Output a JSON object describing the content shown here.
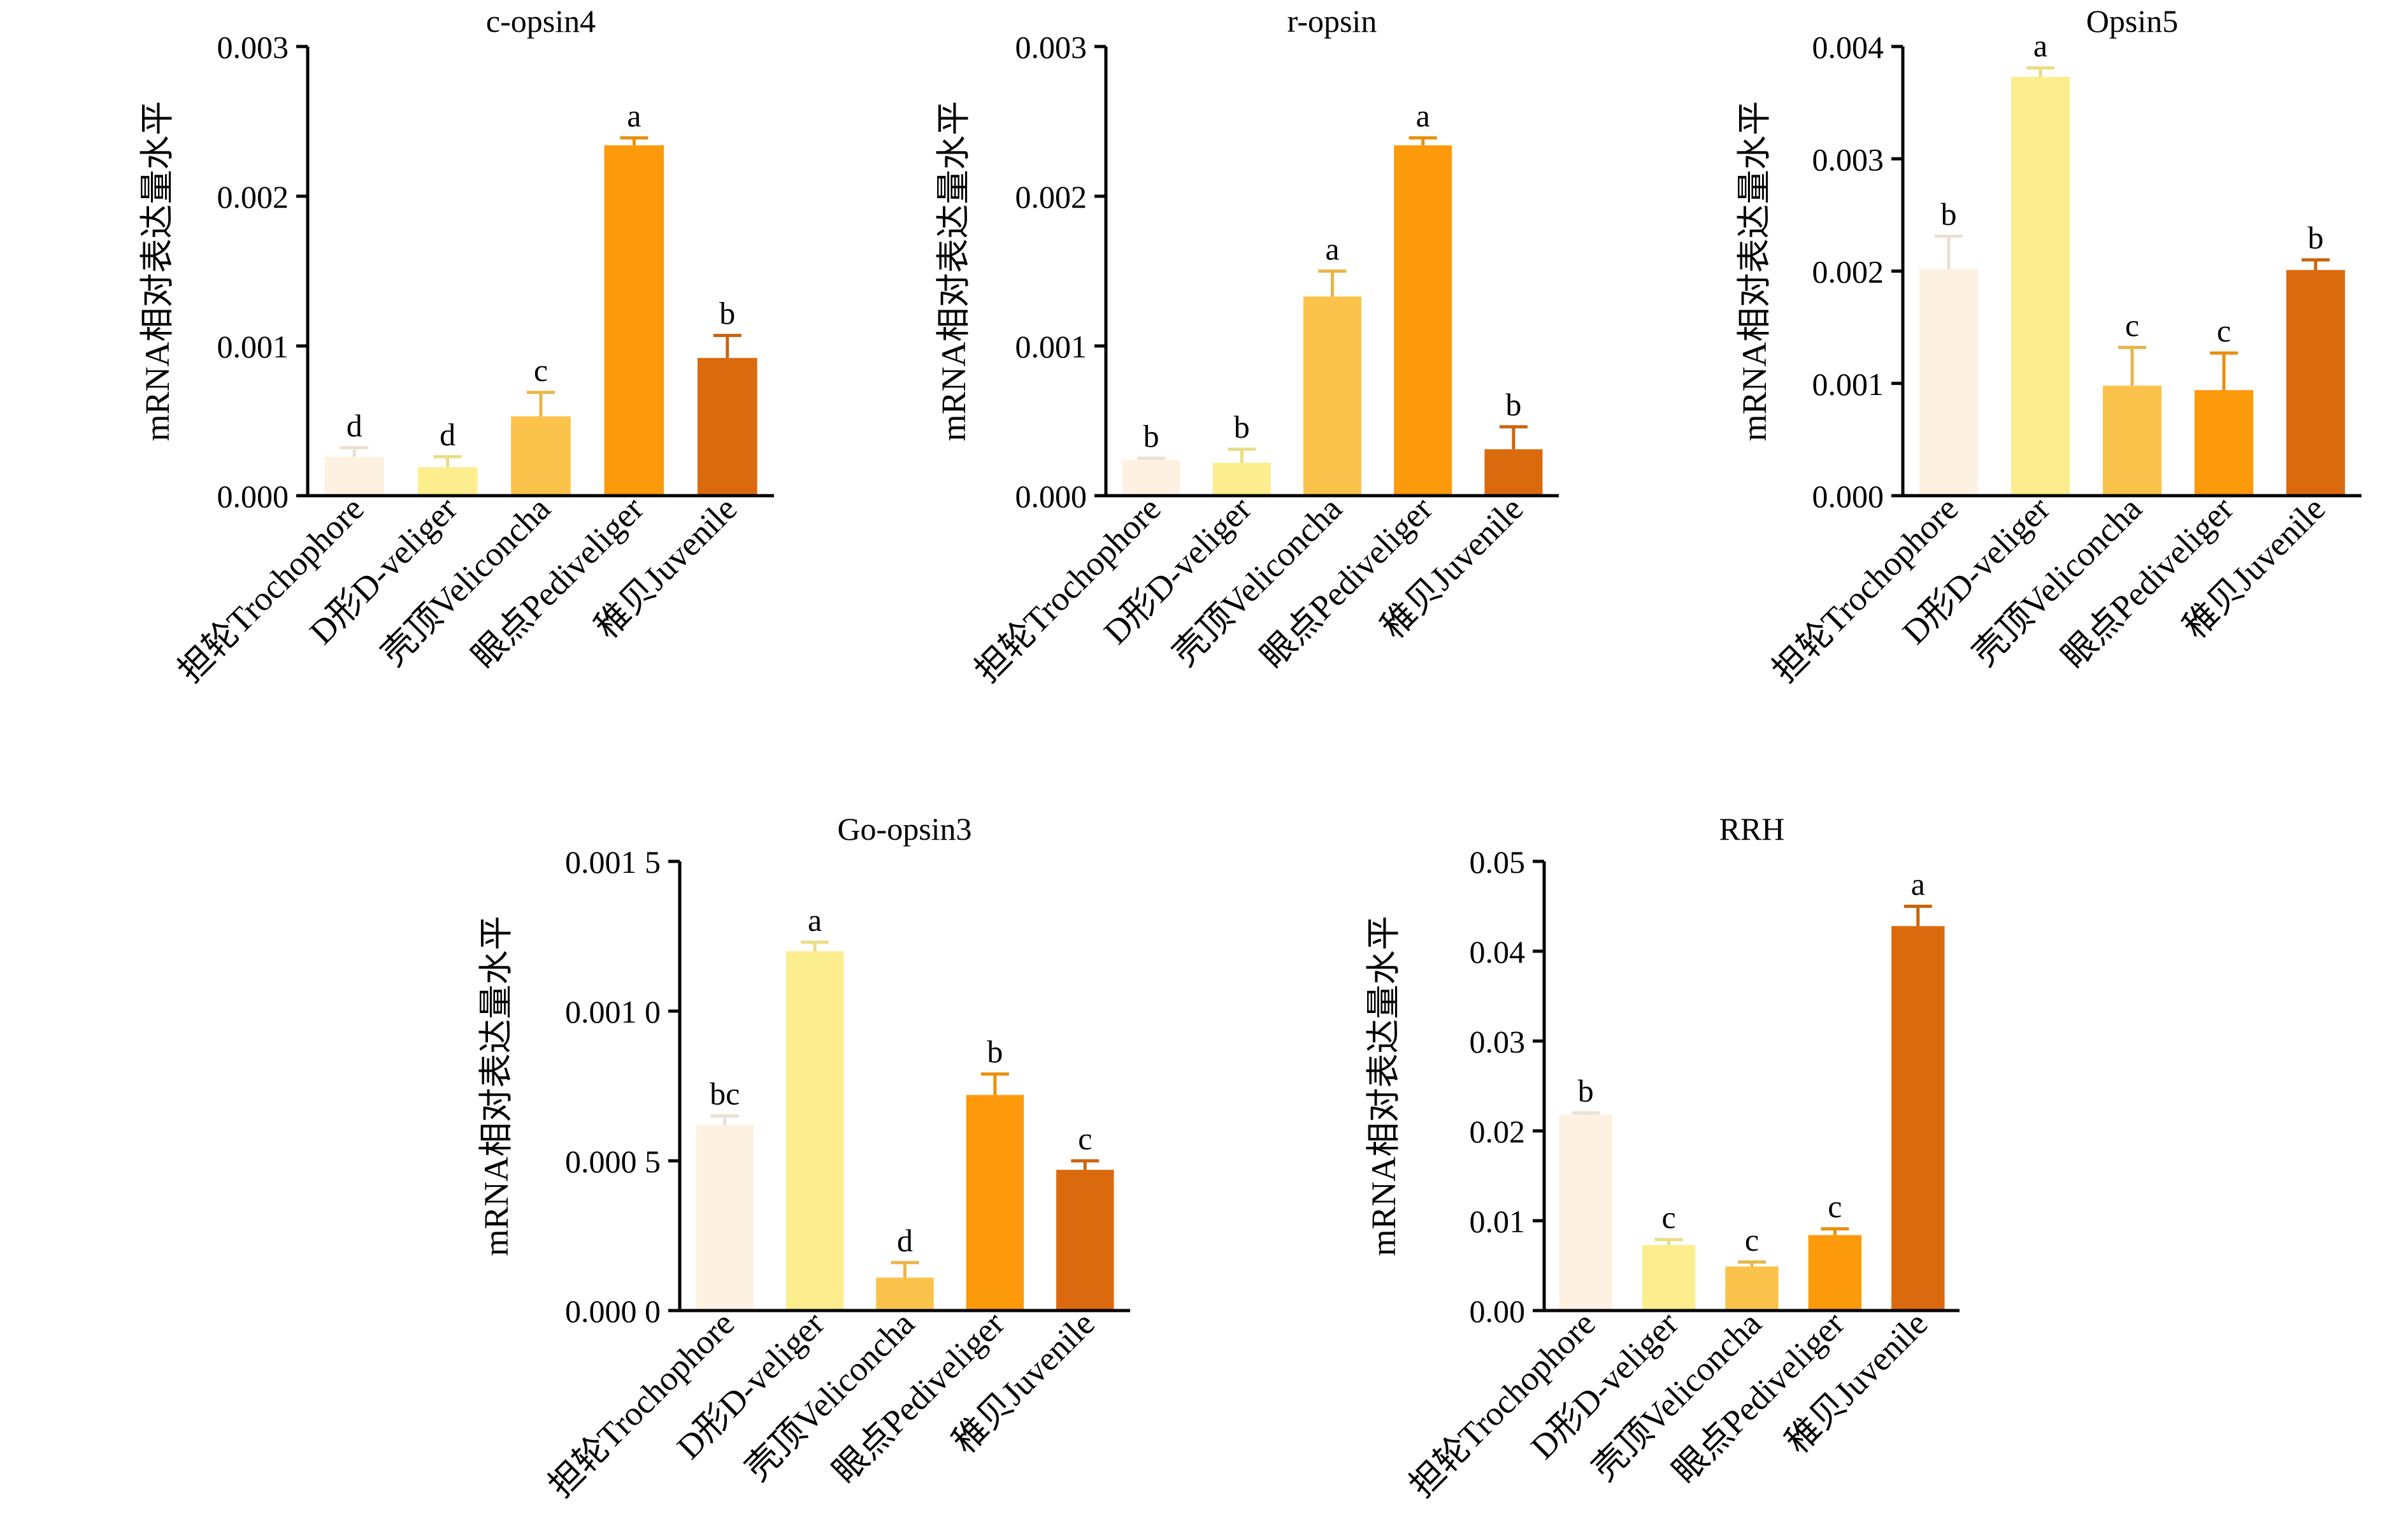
{
  "figure": {
    "palette": [
      "#FDF1E2",
      "#FCEE8E",
      "#FCC34C",
      "#FC9A0B",
      "#DB6A0E"
    ]
  },
  "chart_data": [
    {
      "type": "bar",
      "title": "c-opsin4",
      "ylabel": "mRNA相对表达量水平",
      "xlabel": "",
      "categories": [
        "担轮Trochophore",
        "D形D-veliger",
        "壳顶Veliconcha",
        "眼点Pediveliger",
        "稚贝Juvenile"
      ],
      "values": [
        0.00026,
        0.00019,
        0.00053,
        0.00234,
        0.00092
      ],
      "errors": [
        6e-05,
        7e-05,
        0.00016,
        5e-05,
        0.00015
      ],
      "letters": [
        "d",
        "d",
        "c",
        "a",
        "b"
      ],
      "ylim": [
        0,
        0.003
      ],
      "yticks": [
        0,
        0.001,
        0.002,
        0.003
      ],
      "ytick_labels": [
        "0.000",
        "0.001",
        "0.002",
        "0.003"
      ],
      "grid": false
    },
    {
      "type": "bar",
      "title": "r-opsin",
      "ylabel": "mRNA相对表达量水平",
      "xlabel": "",
      "categories": [
        "担轮Trochophore",
        "D形D-veliger",
        "壳顶Veliconcha",
        "眼点Pediveliger",
        "稚贝Juvenile"
      ],
      "values": [
        0.00024,
        0.00022,
        0.00133,
        0.00234,
        0.00031
      ],
      "errors": [
        1e-05,
        9e-05,
        0.00017,
        5e-05,
        0.00015
      ],
      "letters": [
        "b",
        "b",
        "a",
        "a",
        "b"
      ],
      "ylim": [
        0,
        0.003
      ],
      "yticks": [
        0,
        0.001,
        0.002,
        0.003
      ],
      "ytick_labels": [
        "0.000",
        "0.001",
        "0.002",
        "0.003"
      ],
      "grid": false
    },
    {
      "type": "bar",
      "title": "Opsin5",
      "ylabel": "mRNA相对表达量水平",
      "xlabel": "",
      "categories": [
        "担轮Trochophore",
        "D形D-veliger",
        "壳顶Veliconcha",
        "眼点Pediveliger",
        "稚贝Juvenile"
      ],
      "values": [
        0.00202,
        0.00373,
        0.00098,
        0.00094,
        0.00201
      ],
      "errors": [
        0.00029,
        8e-05,
        0.00034,
        0.00033,
        9e-05
      ],
      "letters": [
        "b",
        "a",
        "c",
        "c",
        "b"
      ],
      "ylim": [
        0,
        0.004
      ],
      "yticks": [
        0,
        0.001,
        0.002,
        0.003,
        0.004
      ],
      "ytick_labels": [
        "0.000",
        "0.001",
        "0.002",
        "0.003",
        "0.004"
      ],
      "grid": false
    },
    {
      "type": "bar",
      "title": "Go-opsin3",
      "ylabel": "mRNA相对表达量水平",
      "xlabel": "",
      "categories": [
        "担轮Trochophore",
        "D形D-veliger",
        "壳顶Veliconcha",
        "眼点Pediveliger",
        "稚贝Juvenile"
      ],
      "values": [
        0.00062,
        0.0012,
        0.00011,
        0.00072,
        0.00047
      ],
      "errors": [
        3e-05,
        3e-05,
        5e-05,
        7e-05,
        3e-05
      ],
      "letters": [
        "bc",
        "a",
        "d",
        "b",
        "c"
      ],
      "ylim": [
        0,
        0.0015
      ],
      "yticks": [
        0,
        0.0005,
        0.001,
        0.0015
      ],
      "ytick_labels": [
        "0.000 0",
        "0.000 5",
        "0.001 0",
        "0.001 5"
      ],
      "grid": false
    },
    {
      "type": "bar",
      "title": "RRH",
      "ylabel": "mRNA相对表达量水平",
      "xlabel": "",
      "categories": [
        "担轮Trochophore",
        "D形D-veliger",
        "壳顶Veliconcha",
        "眼点Pediveliger",
        "稚贝Juvenile"
      ],
      "values": [
        0.0218,
        0.0073,
        0.0049,
        0.0084,
        0.0428
      ],
      "errors": [
        0.0002,
        0.0006,
        0.0005,
        0.0007,
        0.0022
      ],
      "letters": [
        "b",
        "c",
        "c",
        "c",
        "a"
      ],
      "ylim": [
        0,
        0.05
      ],
      "yticks": [
        0,
        0.01,
        0.02,
        0.03,
        0.04,
        0.05
      ],
      "ytick_labels": [
        "0.00",
        "0.01",
        "0.02",
        "0.03",
        "0.04",
        "0.05"
      ],
      "grid": false
    }
  ]
}
